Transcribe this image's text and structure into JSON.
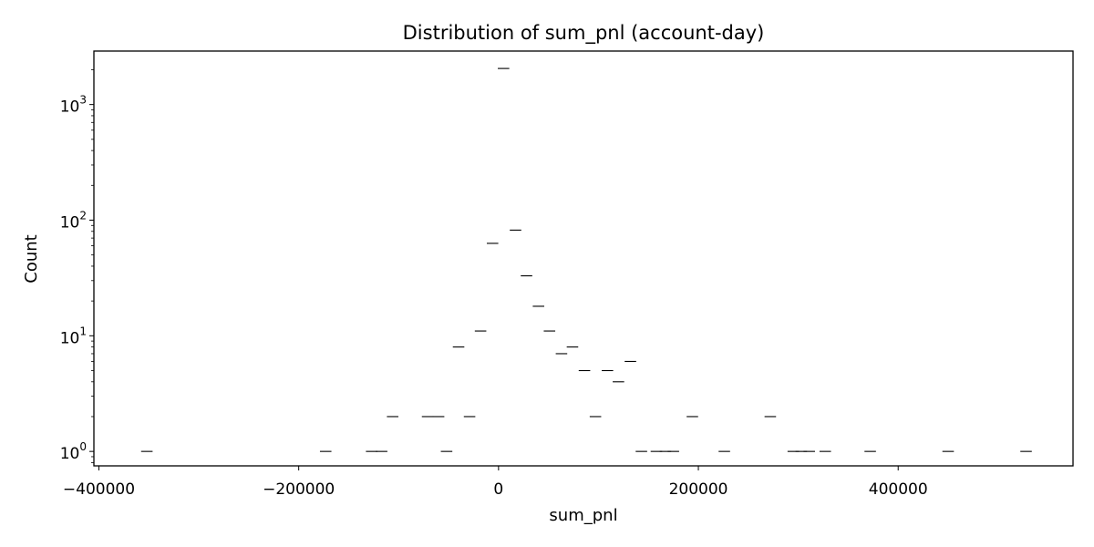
{
  "chart_data": {
    "type": "bar",
    "title": "Distribution of sum_pnl (account-day)",
    "xlabel": "sum_pnl",
    "ylabel": "Count",
    "xlim": [
      -405000,
      575000
    ],
    "ylim": [
      0.75,
      2900
    ],
    "yscale": "log",
    "grid": false,
    "xticks": [
      {
        "value": -400000,
        "label": "−400000"
      },
      {
        "value": -200000,
        "label": "−200000"
      },
      {
        "value": 0,
        "label": "0"
      },
      {
        "value": 200000,
        "label": "200000"
      },
      {
        "value": 400000,
        "label": "400000"
      }
    ],
    "yticks": [
      {
        "value": 1,
        "base": "10",
        "exp": "0"
      },
      {
        "value": 10,
        "base": "10",
        "exp": "1"
      },
      {
        "value": 100,
        "base": "10",
        "exp": "2"
      },
      {
        "value": 1000,
        "base": "10",
        "exp": "3"
      }
    ],
    "bin_width": 11500,
    "bars": [
      {
        "x": -352000,
        "count": 1
      },
      {
        "x": -173000,
        "count": 1
      },
      {
        "x": -127000,
        "count": 1
      },
      {
        "x": -117000,
        "count": 1
      },
      {
        "x": -106000,
        "count": 2
      },
      {
        "x": -71000,
        "count": 2
      },
      {
        "x": -60000,
        "count": 2
      },
      {
        "x": -52000,
        "count": 1
      },
      {
        "x": -40000,
        "count": 8
      },
      {
        "x": -29000,
        "count": 2
      },
      {
        "x": -18000,
        "count": 11
      },
      {
        "x": -6000,
        "count": 63
      },
      {
        "x": 5000,
        "count": 2050
      },
      {
        "x": 17000,
        "count": 82
      },
      {
        "x": 28000,
        "count": 33
      },
      {
        "x": 40000,
        "count": 18
      },
      {
        "x": 51000,
        "count": 11
      },
      {
        "x": 63000,
        "count": 7
      },
      {
        "x": 74000,
        "count": 8
      },
      {
        "x": 86000,
        "count": 5
      },
      {
        "x": 97000,
        "count": 2
      },
      {
        "x": 109000,
        "count": 5
      },
      {
        "x": 120000,
        "count": 4
      },
      {
        "x": 132000,
        "count": 6
      },
      {
        "x": 143000,
        "count": 1
      },
      {
        "x": 158000,
        "count": 1
      },
      {
        "x": 167000,
        "count": 1
      },
      {
        "x": 175000,
        "count": 1
      },
      {
        "x": 194000,
        "count": 2
      },
      {
        "x": 226000,
        "count": 1
      },
      {
        "x": 272000,
        "count": 2
      },
      {
        "x": 295000,
        "count": 1
      },
      {
        "x": 303000,
        "count": 1
      },
      {
        "x": 311000,
        "count": 1
      },
      {
        "x": 327000,
        "count": 1
      },
      {
        "x": 372000,
        "count": 1
      },
      {
        "x": 450000,
        "count": 1
      },
      {
        "x": 528000,
        "count": 1
      }
    ]
  }
}
